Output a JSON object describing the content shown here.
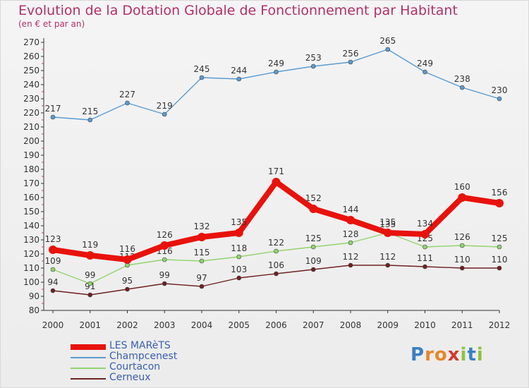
{
  "title": "Evolution de la Dotation Globale de Fonctionnement par Habitant",
  "subtitle": "(en € et par an)",
  "logo_text": "Proxiti",
  "chart_data": {
    "type": "line",
    "x": [
      "2000",
      "2001",
      "2002",
      "2003",
      "2004",
      "2005",
      "2006",
      "2007",
      "2008",
      "2009",
      "2010",
      "2011",
      "2012"
    ],
    "ylim": [
      80,
      270
    ],
    "yticks": [
      80,
      90,
      100,
      110,
      120,
      130,
      140,
      150,
      160,
      170,
      180,
      190,
      200,
      210,
      220,
      230,
      240,
      250,
      260,
      270
    ],
    "grid": false,
    "legend_position": "bottom-left",
    "series": [
      {
        "name": "LES MARèTS",
        "color": "#e8120c",
        "values": [
          123,
          119,
          116,
          126,
          132,
          135,
          171,
          152,
          144,
          135,
          134,
          160,
          156
        ]
      },
      {
        "name": "Champcenest",
        "color": "#5b9bd0",
        "values": [
          217,
          215,
          227,
          219,
          245,
          244,
          249,
          253,
          256,
          265,
          249,
          238,
          230
        ]
      },
      {
        "name": "Courtacon",
        "color": "#92d36e",
        "values": [
          109,
          99,
          112,
          116,
          115,
          118,
          122,
          125,
          128,
          135,
          125,
          126,
          125
        ]
      },
      {
        "name": "Cerneux",
        "color": "#6e2020",
        "values": [
          94,
          91,
          95,
          99,
          97,
          103,
          106,
          109,
          112,
          112,
          111,
          110,
          110
        ]
      }
    ]
  }
}
